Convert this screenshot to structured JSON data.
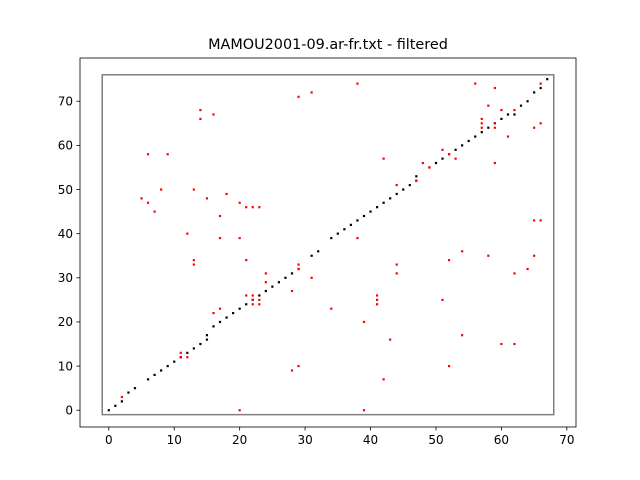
{
  "chart_data": {
    "type": "scatter",
    "title": "MAMOU2001-09.ar-fr.txt - filtered",
    "xlabel": "",
    "ylabel": "",
    "xlim": [
      -4.4,
      71.4
    ],
    "ylim": [
      -3.8,
      79.8
    ],
    "xticks": [
      0,
      10,
      20,
      30,
      40,
      50,
      60,
      70
    ],
    "yticks": [
      0,
      10,
      20,
      30,
      40,
      50,
      60,
      70
    ],
    "grid": false,
    "legend": "none",
    "box": {
      "x0": -1,
      "x1": 68,
      "y0": -1,
      "y1": 76,
      "color": "#808080"
    },
    "colors": {
      "diagonal": "#000000",
      "scatter": "#ff0000"
    },
    "series": [
      {
        "color": "#000000",
        "points": [
          [
            0,
            0
          ],
          [
            1,
            1
          ],
          [
            2,
            2
          ],
          [
            3,
            4
          ],
          [
            4,
            5
          ],
          [
            6,
            7
          ],
          [
            7,
            8
          ],
          [
            8,
            9
          ],
          [
            9,
            10
          ],
          [
            10,
            11
          ],
          [
            11,
            12
          ],
          [
            12,
            13
          ],
          [
            13,
            14
          ],
          [
            14,
            15
          ],
          [
            15,
            16
          ],
          [
            15,
            17
          ],
          [
            16,
            19
          ],
          [
            17,
            20
          ],
          [
            18,
            21
          ],
          [
            19,
            22
          ],
          [
            20,
            23
          ],
          [
            21,
            24
          ],
          [
            22,
            25
          ],
          [
            23,
            26
          ],
          [
            24,
            27
          ],
          [
            25,
            28
          ],
          [
            26,
            29
          ],
          [
            27,
            30
          ],
          [
            28,
            31
          ],
          [
            29,
            32
          ],
          [
            31,
            35
          ],
          [
            32,
            36
          ],
          [
            34,
            39
          ],
          [
            35,
            40
          ],
          [
            36,
            41
          ],
          [
            37,
            42
          ],
          [
            38,
            43
          ],
          [
            39,
            44
          ],
          [
            40,
            45
          ],
          [
            41,
            46
          ],
          [
            42,
            47
          ],
          [
            43,
            48
          ],
          [
            44,
            49
          ],
          [
            45,
            50
          ],
          [
            46,
            51
          ],
          [
            47,
            52
          ],
          [
            47,
            53
          ],
          [
            49,
            55
          ],
          [
            50,
            56
          ],
          [
            51,
            57
          ],
          [
            52,
            58
          ],
          [
            53,
            59
          ],
          [
            54,
            60
          ],
          [
            55,
            61
          ],
          [
            56,
            62
          ],
          [
            57,
            63
          ],
          [
            58,
            64
          ],
          [
            59,
            65
          ],
          [
            60,
            66
          ],
          [
            61,
            67
          ],
          [
            62,
            67
          ],
          [
            63,
            69
          ],
          [
            64,
            70
          ],
          [
            65,
            72
          ],
          [
            66,
            73
          ],
          [
            67,
            75
          ]
        ]
      },
      {
        "color": "#ff0000",
        "points": [
          [
            2,
            3
          ],
          [
            5,
            48
          ],
          [
            6,
            47
          ],
          [
            6,
            58
          ],
          [
            7,
            45
          ],
          [
            8,
            50
          ],
          [
            9,
            58
          ],
          [
            11,
            12
          ],
          [
            11,
            13
          ],
          [
            12,
            12
          ],
          [
            12,
            40
          ],
          [
            13,
            33
          ],
          [
            13,
            34
          ],
          [
            13,
            50
          ],
          [
            14,
            66
          ],
          [
            14,
            68
          ],
          [
            15,
            48
          ],
          [
            16,
            22
          ],
          [
            16,
            67
          ],
          [
            17,
            23
          ],
          [
            17,
            39
          ],
          [
            17,
            44
          ],
          [
            18,
            49
          ],
          [
            20,
            0
          ],
          [
            20,
            39
          ],
          [
            20,
            47
          ],
          [
            21,
            26
          ],
          [
            21,
            34
          ],
          [
            21,
            46
          ],
          [
            22,
            24
          ],
          [
            22,
            25
          ],
          [
            22,
            26
          ],
          [
            22,
            46
          ],
          [
            23,
            24
          ],
          [
            23,
            25
          ],
          [
            23,
            46
          ],
          [
            24,
            29
          ],
          [
            24,
            31
          ],
          [
            28,
            9
          ],
          [
            28,
            27
          ],
          [
            29,
            10
          ],
          [
            29,
            32
          ],
          [
            29,
            33
          ],
          [
            29,
            71
          ],
          [
            31,
            30
          ],
          [
            31,
            72
          ],
          [
            34,
            23
          ],
          [
            38,
            39
          ],
          [
            38,
            74
          ],
          [
            39,
            0
          ],
          [
            39,
            20
          ],
          [
            41,
            24
          ],
          [
            41,
            25
          ],
          [
            41,
            26
          ],
          [
            42,
            7
          ],
          [
            42,
            57
          ],
          [
            43,
            16
          ],
          [
            44,
            31
          ],
          [
            44,
            33
          ],
          [
            44,
            51
          ],
          [
            47,
            52
          ],
          [
            48,
            56
          ],
          [
            49,
            55
          ],
          [
            51,
            25
          ],
          [
            51,
            59
          ],
          [
            52,
            10
          ],
          [
            52,
            34
          ],
          [
            52,
            58
          ],
          [
            53,
            57
          ],
          [
            54,
            17
          ],
          [
            54,
            36
          ],
          [
            56,
            74
          ],
          [
            57,
            64
          ],
          [
            57,
            65
          ],
          [
            57,
            66
          ],
          [
            58,
            35
          ],
          [
            58,
            69
          ],
          [
            59,
            56
          ],
          [
            59,
            64
          ],
          [
            59,
            65
          ],
          [
            59,
            73
          ],
          [
            60,
            15
          ],
          [
            60,
            68
          ],
          [
            61,
            62
          ],
          [
            62,
            15
          ],
          [
            62,
            31
          ],
          [
            62,
            68
          ],
          [
            64,
            32
          ],
          [
            65,
            35
          ],
          [
            65,
            43
          ],
          [
            65,
            64
          ],
          [
            66,
            43
          ],
          [
            66,
            65
          ],
          [
            66,
            74
          ]
        ]
      }
    ]
  }
}
